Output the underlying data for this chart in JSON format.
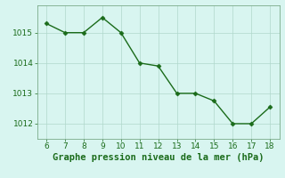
{
  "x": [
    6,
    7,
    8,
    9,
    10,
    11,
    12,
    13,
    14,
    15,
    16,
    17,
    18
  ],
  "y": [
    1015.3,
    1015.0,
    1015.0,
    1015.5,
    1015.0,
    1014.0,
    1013.9,
    1013.0,
    1013.0,
    1012.75,
    1012.0,
    1012.0,
    1012.55
  ],
  "line_color": "#1a6b1a",
  "marker": "D",
  "marker_size": 2.5,
  "bg_color": "#d8f5f0",
  "grid_color": "#b0d8cc",
  "xlabel": "Graphe pression niveau de la mer (hPa)",
  "xlabel_color": "#1a6b1a",
  "xlabel_fontsize": 7.5,
  "xlim": [
    5.5,
    18.5
  ],
  "ylim": [
    1011.5,
    1015.9
  ],
  "yticks": [
    1012,
    1013,
    1014,
    1015
  ],
  "xticks": [
    6,
    7,
    8,
    9,
    10,
    11,
    12,
    13,
    14,
    15,
    16,
    17,
    18
  ],
  "tick_fontsize": 6.5,
  "tick_color": "#1a6b1a",
  "spine_color": "#7aaa88",
  "line_width": 1.0
}
